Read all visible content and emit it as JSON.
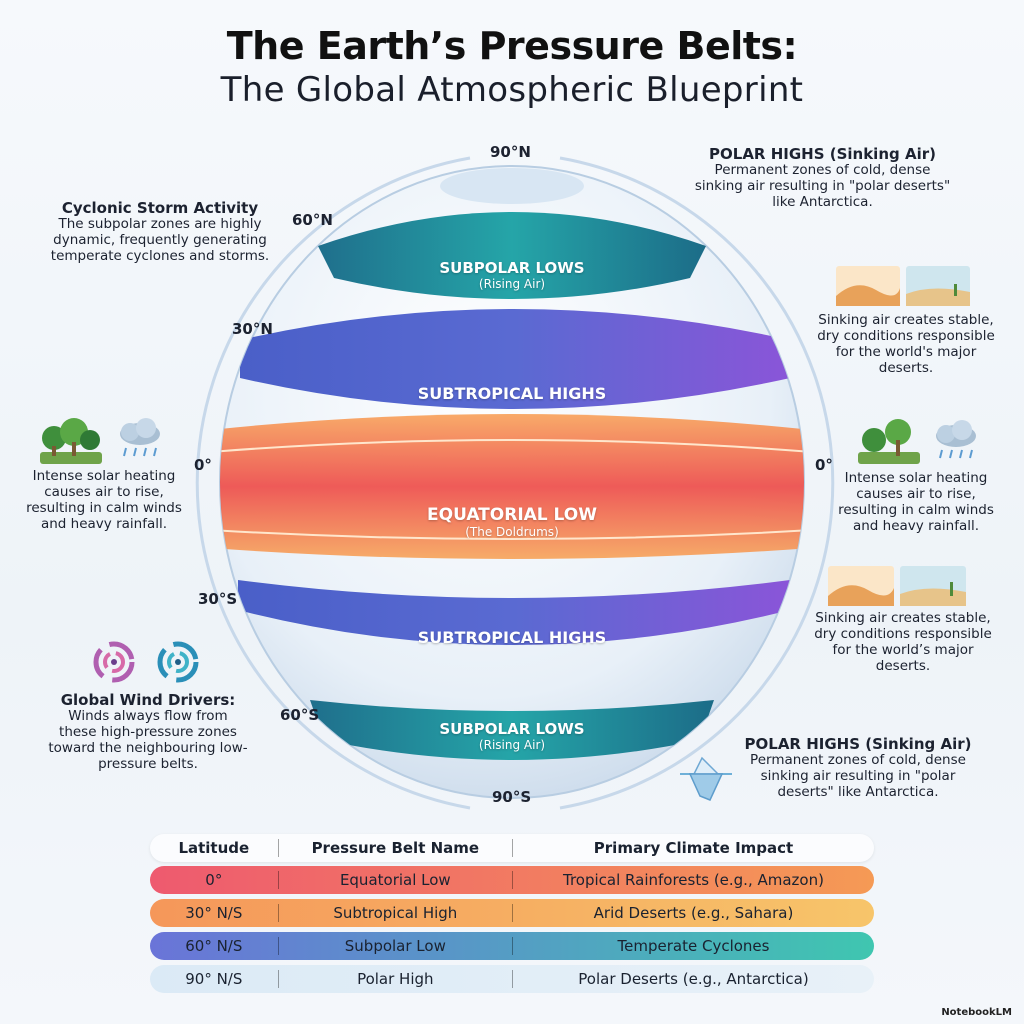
{
  "title": "The Earth’s Pressure Belts:",
  "subtitle": "The Global Atmospheric Blueprint",
  "latitudes": {
    "n90": "90°N",
    "n60": "60°N",
    "n30": "30°N",
    "eq_left": "0°",
    "eq_right": "0°",
    "s30": "30°S",
    "s60": "60°S",
    "s90": "90°S"
  },
  "bands": {
    "subpolar_low_north": {
      "label": "SUBPOLAR LOWS",
      "sub": "(Rising Air)"
    },
    "subtropical_high_north": {
      "label": "SUBTROPICAL HIGHS"
    },
    "equatorial_low": {
      "label": "EQUATORIAL LOW",
      "sub": "(The Doldrums)"
    },
    "subtropical_high_south": {
      "label": "SUBTROPICAL HIGHS"
    },
    "subpolar_low_south": {
      "label": "SUBPOLAR LOWS",
      "sub": "(Rising Air)"
    }
  },
  "notes": {
    "cyclonic": {
      "heading": "Cyclonic Storm Activity",
      "text": "The subpolar zones are highly dynamic, frequently generating temperate cyclones and storms."
    },
    "polar_north": {
      "heading": "POLAR HIGHS (Sinking Air)",
      "text": "Permanent zones of cold, dense sinking air resulting in \"polar deserts\" like Antarctica."
    },
    "deserts_north": {
      "text": "Sinking air creates stable, dry conditions responsible for the world's major deserts."
    },
    "equator_left": {
      "text": "Intense solar heating causes air to rise, resulting in calm winds and heavy rainfall."
    },
    "equator_right": {
      "text": "Intense solar heating causes air to rise, resulting in calm winds and heavy rainfall."
    },
    "deserts_south": {
      "text": "Sinking air creates stable, dry conditions responsible for the world’s major deserts."
    },
    "wind_drivers": {
      "heading": "Global Wind Drivers:",
      "text": "Winds always flow from these high-pressure zones toward the neighbouring low-pressure belts."
    },
    "polar_south": {
      "heading": "POLAR HIGHS (Sinking Air)",
      "text": "Permanent zones of cold, dense sinking air resulting in \"polar deserts\" like Antarctica."
    }
  },
  "icons": [
    "forest-icon",
    "rain-cloud-icon",
    "desert-icon",
    "cyclone-icon",
    "iceberg-icon"
  ],
  "table": {
    "headers": [
      "Latitude",
      "Pressure Belt Name",
      "Primary Climate Impact"
    ],
    "rows": [
      {
        "latitude": "0°",
        "belt": "Equatorial Low",
        "impact": "Tropical Rainforests (e.g., Amazon)",
        "color_from": "#ee5a6f",
        "color_to": "#f59a55"
      },
      {
        "latitude": "30° N/S",
        "belt": "Subtropical High",
        "impact": "Arid Deserts (e.g., Sahara)",
        "color_from": "#f5975a",
        "color_to": "#f7c56a"
      },
      {
        "latitude": "60° N/S",
        "belt": "Subpolar Low",
        "impact": "Temperate Cyclones",
        "color_from": "#6a74d8",
        "color_to": "#3fc6b0"
      },
      {
        "latitude": "90° N/S",
        "belt": "Polar High",
        "impact": "Polar Deserts (e.g., Antarctica)",
        "color_from": "#dbeaf6",
        "color_to": "#e8f1f8"
      }
    ]
  },
  "brand": "NotebookLM"
}
